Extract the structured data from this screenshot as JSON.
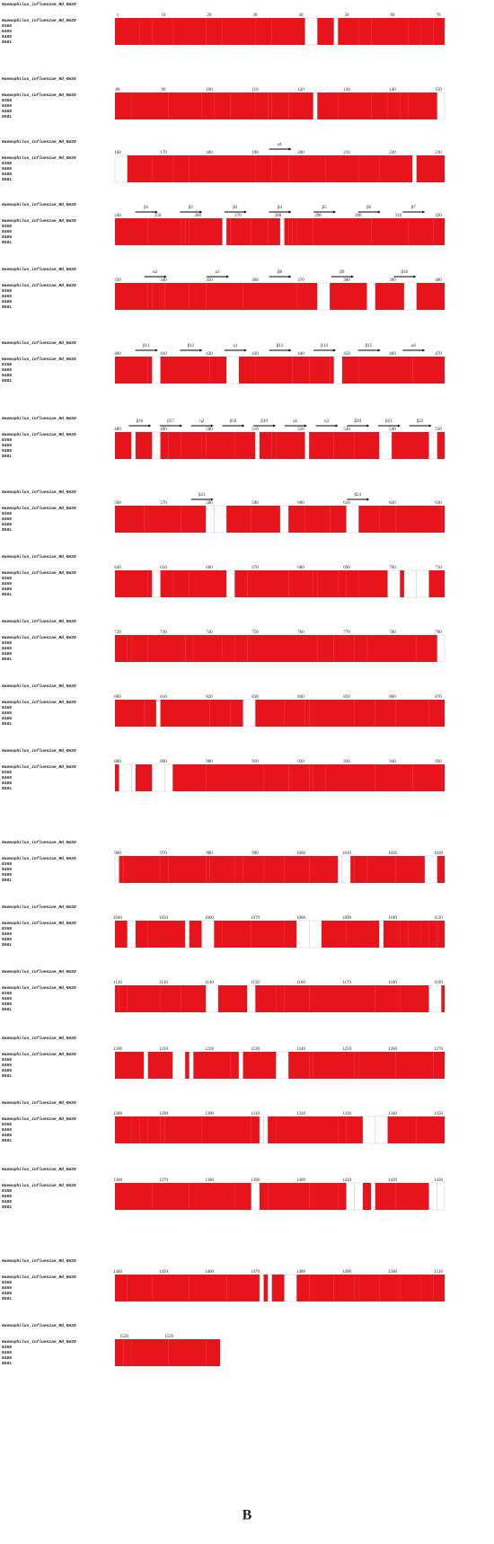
{
  "figure": {
    "species": "Haemophilus_influenzae_Rd_KW20",
    "strains": [
      "8368",
      "8469",
      "8488",
      "8581"
    ],
    "panel_label": "B",
    "blocks": [
      {
        "ruler": [
          "1",
          "10",
          "20",
          "30",
          "40",
          "50",
          "60",
          "70"
        ],
        "structure": []
      },
      {
        "ruler": [
          "80",
          "90",
          "100",
          "110",
          "120",
          "130",
          "140",
          "150"
        ],
        "structure": []
      },
      {
        "ruler": [
          "160",
          "170",
          "180",
          "190",
          "200",
          "210",
          "220",
          "230"
        ],
        "structure": [
          "α1"
        ]
      },
      {
        "ruler": [
          "240",
          "250",
          "260",
          "270",
          "280",
          "290",
          "300",
          "310",
          "320"
        ],
        "structure": [
          "β1",
          "β2",
          "β3",
          "β4",
          "β5",
          "β6",
          "β7"
        ]
      },
      {
        "ruler": [
          "330",
          "340",
          "350",
          "360",
          "370",
          "380",
          "390",
          "400"
        ],
        "structure": [
          "α2",
          "α3",
          "β8",
          "β9",
          "β10"
        ]
      },
      {
        "ruler": [
          "400",
          "410",
          "420",
          "430",
          "440",
          "450",
          "460",
          "470"
        ],
        "structure": [
          "β11",
          "β12",
          "η1",
          "β13",
          "β14",
          "β15",
          "α4"
        ]
      },
      {
        "ruler": [
          "480",
          "490",
          "500",
          "510",
          "520",
          "530",
          "540",
          "550"
        ],
        "structure": [
          "β16",
          "β17",
          "η2",
          "β18",
          "β19",
          "α5",
          "η3",
          "β20",
          "β21",
          "β22"
        ]
      },
      {
        "ruler": [
          "560",
          "570",
          "580",
          "590",
          "600",
          "610",
          "620",
          "630"
        ],
        "structure": [
          "β23",
          "β24"
        ]
      },
      {
        "ruler": [
          "640",
          "650",
          "660",
          "670",
          "680",
          "690",
          "700",
          "710"
        ],
        "structure": []
      },
      {
        "ruler": [
          "720",
          "730",
          "740",
          "750",
          "760",
          "770",
          "780",
          "790"
        ],
        "structure": []
      },
      {
        "ruler": [
          "800",
          "810",
          "820",
          "830",
          "840",
          "850",
          "860",
          "870"
        ],
        "structure": []
      },
      {
        "ruler": [
          "880",
          "890",
          "900",
          "910",
          "920",
          "930",
          "940",
          "950"
        ],
        "structure": []
      },
      {
        "ruler": [
          "960",
          "970",
          "980",
          "990",
          "1000",
          "1010",
          "1020",
          "1030"
        ],
        "structure": []
      },
      {
        "ruler": [
          "1040",
          "1050",
          "1060",
          "1070",
          "1080",
          "1090",
          "1100",
          "1110"
        ],
        "structure": []
      },
      {
        "ruler": [
          "1120",
          "1130",
          "1140",
          "1150",
          "1160",
          "1170",
          "1180",
          "1190"
        ],
        "structure": []
      },
      {
        "ruler": [
          "1200",
          "1210",
          "1220",
          "1230",
          "1240",
          "1250",
          "1260",
          "1270"
        ],
        "structure": []
      },
      {
        "ruler": [
          "1280",
          "1290",
          "1300",
          "1310",
          "1320",
          "1330",
          "1340",
          "1350"
        ],
        "structure": []
      },
      {
        "ruler": [
          "1360",
          "1370",
          "1380",
          "1390",
          "1400",
          "1410",
          "1420",
          "1430"
        ],
        "structure": []
      },
      {
        "ruler": [
          "1440",
          "1450",
          "1460",
          "1470",
          "1480",
          "1490",
          "1500",
          "1510"
        ],
        "structure": []
      },
      {
        "ruler": [
          "1520",
          "1530"
        ],
        "structure": []
      }
    ]
  }
}
